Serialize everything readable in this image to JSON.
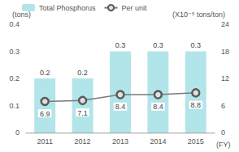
{
  "chart_data": {
    "type": "bar",
    "categories": [
      "2011",
      "2012",
      "2013",
      "2014",
      "2015"
    ],
    "xlabel": "(FY)",
    "ylabel": "(tons)",
    "y2label": "(X10⁻⁵ tons/ton)",
    "series": [
      {
        "name": "Total Phosphorus",
        "type": "bar",
        "color": "#b2e5ea",
        "values": [
          0.2,
          0.2,
          0.3,
          0.3,
          0.3
        ]
      },
      {
        "name": "Per unit",
        "type": "line",
        "axis": "y2",
        "color": "#7a7a7a",
        "marker": "circle",
        "values": [
          6.9,
          7.1,
          8.4,
          8.4,
          8.8
        ]
      }
    ],
    "ylim": [
      0,
      0.4
    ],
    "yticks": [
      0,
      0.1,
      0.2,
      0.3,
      0.4
    ],
    "y2lim": [
      0,
      24
    ],
    "y2ticks": [
      0,
      6,
      12,
      18,
      24
    ],
    "grid": false,
    "legend": "top-left",
    "data_labels": true
  }
}
